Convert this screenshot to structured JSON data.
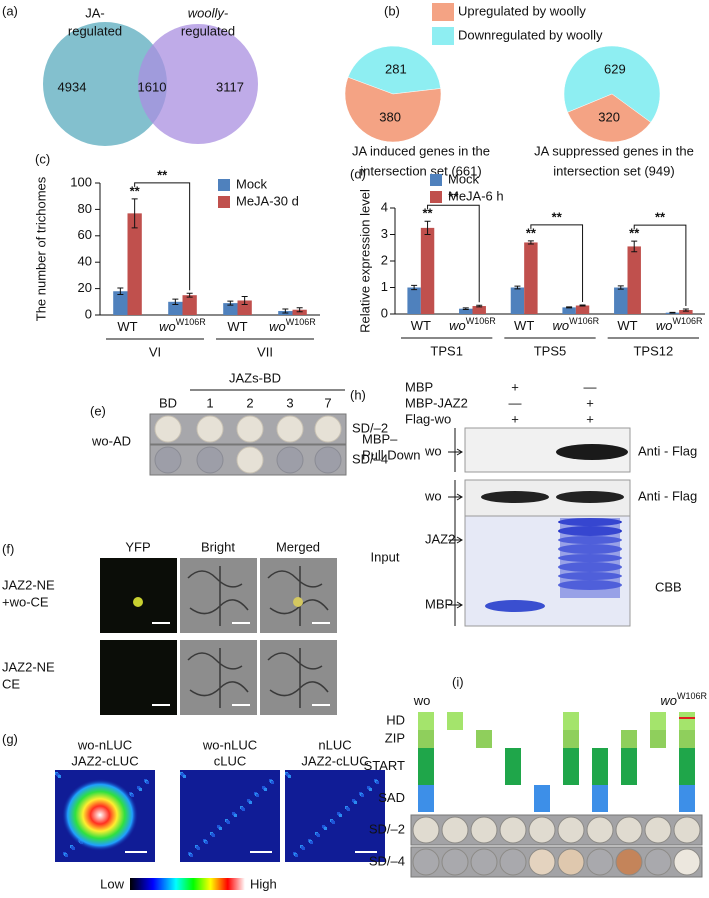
{
  "venn": {
    "panel_label": "(a)",
    "sets": [
      {
        "name": [
          "JA-",
          "regulated"
        ],
        "count": 4934
      },
      {
        "name": [
          "woolly-",
          "regulated"
        ],
        "count": 3117
      }
    ],
    "intersection": 1610
  },
  "chart_data": [
    {
      "type": "pie",
      "panel_label": "(b)",
      "categories": [
        "Upregulated by woolly",
        "Downregulated by woolly"
      ],
      "colors": [
        "#f4a384",
        "#8eeef2"
      ],
      "values": [
        380,
        281
      ],
      "caption": [
        "JA induced genes in the",
        "intersection set (661)"
      ]
    },
    {
      "type": "pie",
      "values": [
        320,
        629
      ],
      "caption": [
        "JA suppressed genes in the",
        "intersection set (949)"
      ]
    },
    {
      "type": "bar",
      "panel_label": "(c)",
      "ylabel": "The number of trichomes",
      "ylim": [
        0,
        100
      ],
      "yticks": [
        0,
        20,
        40,
        60,
        80,
        100
      ],
      "categories": [
        {
          "text": "WT"
        },
        {
          "text": "wo",
          "sup": "W106R"
        },
        {
          "text": "WT"
        },
        {
          "text": "wo",
          "sup": "W106R"
        }
      ],
      "groups": [
        "VI",
        "VII"
      ],
      "legend": "top-right",
      "series": [
        {
          "name": "Mock",
          "color": "#4f81bd",
          "values": [
            18,
            10,
            9,
            3
          ],
          "errors": [
            2.5,
            2,
            1.5,
            1.5
          ]
        },
        {
          "name": "MeJA-30 d",
          "color": "#c0504d",
          "values": [
            77,
            15,
            11,
            4
          ],
          "errors": [
            11,
            1.5,
            3,
            1.5
          ]
        }
      ],
      "annotations": [
        {
          "text": "**",
          "over": [
            0,
            1
          ]
        },
        {
          "text": "**",
          "between": [
            [
              0,
              1
            ],
            [
              1,
              1
            ]
          ]
        }
      ]
    },
    {
      "type": "bar",
      "panel_label": "(d)",
      "ylabel": "Relative expression level",
      "ylim": [
        0,
        4
      ],
      "yticks": [
        0,
        1,
        2,
        3,
        4
      ],
      "categories": [
        {
          "text": "WT"
        },
        {
          "text": "wo",
          "sup": "W106R"
        },
        {
          "text": "WT"
        },
        {
          "text": "wo",
          "sup": "W106R"
        },
        {
          "text": "WT"
        },
        {
          "text": "wo",
          "sup": "W106R"
        }
      ],
      "groups": [
        "TPS1",
        "TPS5",
        "TPS12"
      ],
      "legend": "top-left",
      "series": [
        {
          "name": "Mock",
          "color": "#4f81bd",
          "values": [
            1.0,
            0.2,
            1.0,
            0.25,
            1.0,
            0.05
          ],
          "errors": [
            0.08,
            0.03,
            0.05,
            0.02,
            0.06,
            0.01
          ]
        },
        {
          "name": "MeJA-6 h",
          "color": "#c0504d",
          "values": [
            3.25,
            0.3,
            2.7,
            0.32,
            2.55,
            0.15
          ],
          "errors": [
            0.25,
            0.03,
            0.06,
            0.02,
            0.2,
            0.04
          ]
        }
      ],
      "annotations": [
        {
          "text": "**",
          "over": [
            0,
            1
          ]
        },
        {
          "text": "**",
          "between": [
            [
              0,
              1
            ],
            [
              1,
              1
            ]
          ]
        },
        {
          "text": "**",
          "over": [
            2,
            1
          ]
        },
        {
          "text": "**",
          "between": [
            [
              2,
              1
            ],
            [
              3,
              1
            ]
          ]
        },
        {
          "text": "**",
          "over": [
            4,
            1
          ]
        },
        {
          "text": "**",
          "between": [
            [
              4,
              1
            ],
            [
              5,
              1
            ]
          ]
        }
      ]
    }
  ],
  "panel_e": {
    "panel_label": "(e)",
    "header": "JAZs-BD",
    "columns": [
      "BD",
      "1",
      "2",
      "3",
      "7"
    ],
    "row_label": "wo-AD",
    "rows": [
      "SD/–2",
      "SD/–4"
    ]
  },
  "panel_f": {
    "panel_label": "(f)",
    "columns": [
      "YFP",
      "Bright",
      "Merged"
    ],
    "rows": [
      [
        "JAZ2-NE",
        "+wo-CE"
      ],
      [
        "JAZ2-NE",
        "CE"
      ]
    ]
  },
  "panel_g": {
    "panel_label": "(g)",
    "columns": [
      [
        "wo-nLUC",
        "JAZ2-cLUC"
      ],
      [
        "wo-nLUC",
        "cLUC"
      ],
      [
        "nLUC",
        "JAZ2-cLUC"
      ]
    ],
    "scale": [
      "Low",
      "High"
    ]
  },
  "panel_h": {
    "panel_label": "(h)",
    "conditions": [
      {
        "name": "MBP",
        "lanes": [
          "+",
          "—"
        ]
      },
      {
        "name": "MBP-JAZ2",
        "lanes": [
          "—",
          "+"
        ]
      },
      {
        "name": "Flag-wo",
        "lanes": [
          "+",
          "+"
        ]
      }
    ],
    "pull_down": [
      "MBP–",
      "Pull Down"
    ],
    "input": "Input",
    "blots": [
      {
        "band": "wo",
        "antibody": "Anti - Flag"
      },
      {
        "band": "wo",
        "antibody": "Anti - Flag"
      }
    ],
    "gel": {
      "bands": [
        "JAZ2",
        "MBP"
      ],
      "stain": "CBB"
    }
  },
  "panel_i": {
    "panel_label": "(i)",
    "constructs": [
      {
        "text": "wo"
      },
      {
        "text": "wo",
        "sup": "W106R"
      }
    ],
    "domains": [
      "HD",
      "ZIP",
      "START",
      "SAD"
    ],
    "media": [
      "SD/–2",
      "SD/–4"
    ]
  }
}
